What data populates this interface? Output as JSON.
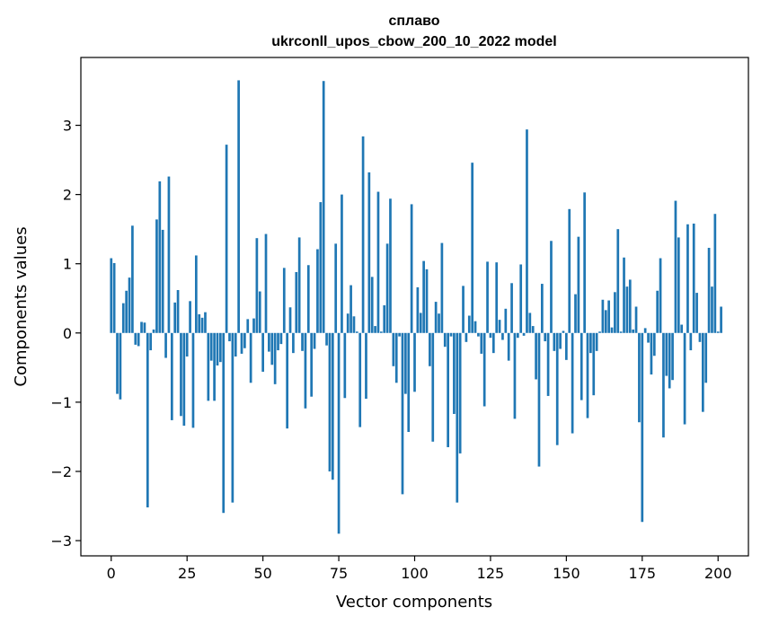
{
  "chart_data": {
    "type": "bar",
    "title": "сплаво",
    "subtitle": "ukrconll_upos_cbow_200_10_2022 model",
    "xlabel": "Vector components",
    "ylabel": "Components values",
    "xlim": [
      -10,
      210
    ],
    "ylim": [
      -3.22,
      3.98
    ],
    "x_ticks": [
      0,
      25,
      50,
      75,
      100,
      125,
      150,
      175,
      200
    ],
    "x_tick_labels": [
      "0",
      "25",
      "50",
      "75",
      "100",
      "125",
      "150",
      "175",
      "200"
    ],
    "y_ticks": [
      -3,
      -2,
      -1,
      0,
      1,
      2,
      3
    ],
    "y_tick_labels": [
      "−3",
      "−2",
      "−1",
      "0",
      "1",
      "2",
      "3"
    ],
    "bar_color": "#1f77b4",
    "grid": false,
    "values": [
      1.08,
      1.01,
      -0.88,
      -0.96,
      0.43,
      0.61,
      0.8,
      1.55,
      -0.17,
      -0.19,
      0.16,
      0.15,
      -2.52,
      -0.25,
      0.05,
      1.64,
      2.19,
      1.49,
      -0.36,
      2.26,
      -1.26,
      0.44,
      0.62,
      -1.2,
      -1.34,
      -0.34,
      0.46,
      -1.37,
      1.12,
      0.27,
      0.22,
      0.3,
      -0.98,
      -0.4,
      -0.98,
      -0.47,
      -0.42,
      -2.6,
      2.72,
      -0.12,
      -2.45,
      -0.34,
      3.65,
      -0.3,
      -0.22,
      0.2,
      -0.72,
      0.21,
      1.37,
      0.6,
      -0.56,
      1.43,
      -0.27,
      -0.46,
      -0.74,
      -0.25,
      -0.16,
      0.94,
      -1.38,
      0.37,
      -0.29,
      0.88,
      1.38,
      -0.26,
      -1.09,
      0.98,
      -0.92,
      -0.23,
      1.21,
      1.89,
      3.64,
      -0.18,
      -2.0,
      -2.12,
      1.29,
      -2.9,
      2.0,
      -0.94,
      0.28,
      0.69,
      0.24,
      0.02,
      -1.36,
      2.84,
      -0.95,
      2.32,
      0.81,
      0.1,
      2.04,
      0.02,
      0.4,
      1.29,
      1.94,
      -0.48,
      -0.72,
      -0.05,
      -2.33,
      -0.88,
      -1.43,
      1.86,
      -0.85,
      0.66,
      0.29,
      1.04,
      0.92,
      -0.48,
      -1.57,
      0.45,
      0.28,
      1.3,
      -0.2,
      -1.65,
      -0.05,
      -1.17,
      -2.45,
      -1.74,
      0.68,
      -0.13,
      0.25,
      2.46,
      0.17,
      -0.05,
      -0.3,
      -1.06,
      1.03,
      -0.07,
      -0.29,
      1.02,
      0.19,
      -0.1,
      0.35,
      -0.4,
      0.72,
      -1.24,
      -0.07,
      0.99,
      -0.04,
      2.94,
      0.29,
      0.1,
      -0.67,
      -1.93,
      0.71,
      -0.12,
      -0.91,
      1.33,
      -0.26,
      -1.62,
      -0.23,
      0.03,
      -0.39,
      1.79,
      -1.45,
      0.56,
      1.39,
      -0.97,
      2.03,
      -1.23,
      -0.29,
      -0.9,
      -0.26,
      0.02,
      0.48,
      0.33,
      0.47,
      0.08,
      0.59,
      1.5,
      0.02,
      1.09,
      0.67,
      0.77,
      0.05,
      0.38,
      -1.29,
      -2.73,
      0.07,
      -0.14,
      -0.6,
      -0.33,
      0.61,
      1.08,
      -1.51,
      -0.62,
      -0.8,
      -0.68,
      1.91,
      1.38,
      0.12,
      -1.32,
      1.57,
      -0.25,
      1.58,
      0.58,
      -0.13,
      -1.14,
      -0.72,
      1.23,
      0.67,
      1.72,
      0.02,
      0.38
    ]
  }
}
